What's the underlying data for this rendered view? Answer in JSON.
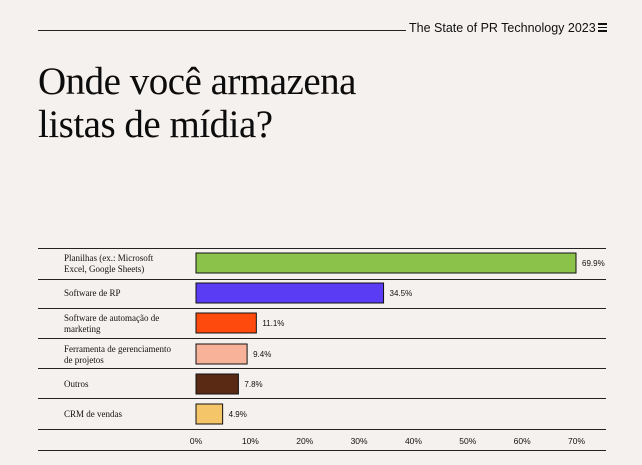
{
  "header": {
    "report_title": "The State of PR Technology 2023",
    "menu_icon": "hamburger-menu-icon"
  },
  "headline": "Onde você armazena listas de mídia?",
  "chart_data": {
    "type": "bar",
    "orientation": "horizontal",
    "title": "Onde você armazena listas de mídia?",
    "categories": [
      [
        "Planilhas (ex.: Microsoft",
        "Excel, Google Sheets)"
      ],
      [
        "Software de RP"
      ],
      [
        "Software de automação de",
        "marketing"
      ],
      [
        "Ferramenta de gerenciamento",
        "de projetos"
      ],
      [
        "Outros"
      ],
      [
        "CRM de vendas"
      ]
    ],
    "values": [
      69.9,
      34.5,
      11.1,
      9.4,
      7.8,
      4.9
    ],
    "value_labels": [
      "69.9%",
      "34.5%",
      "11.1%",
      "9.4%",
      "7.8%",
      "4.9%"
    ],
    "colors": [
      "#8bc34a",
      "#5b3cf5",
      "#ff4a0e",
      "#f9b29a",
      "#5a2a14",
      "#f5c56a"
    ],
    "xlim": [
      0,
      70
    ],
    "xticks": [
      0,
      10,
      20,
      30,
      40,
      50,
      60,
      70
    ],
    "xtick_labels": [
      "0%",
      "10%",
      "20%",
      "30%",
      "40%",
      "50%",
      "60%",
      "70%"
    ],
    "xlabel": "",
    "ylabel": "",
    "grid": false,
    "legend": "none"
  }
}
